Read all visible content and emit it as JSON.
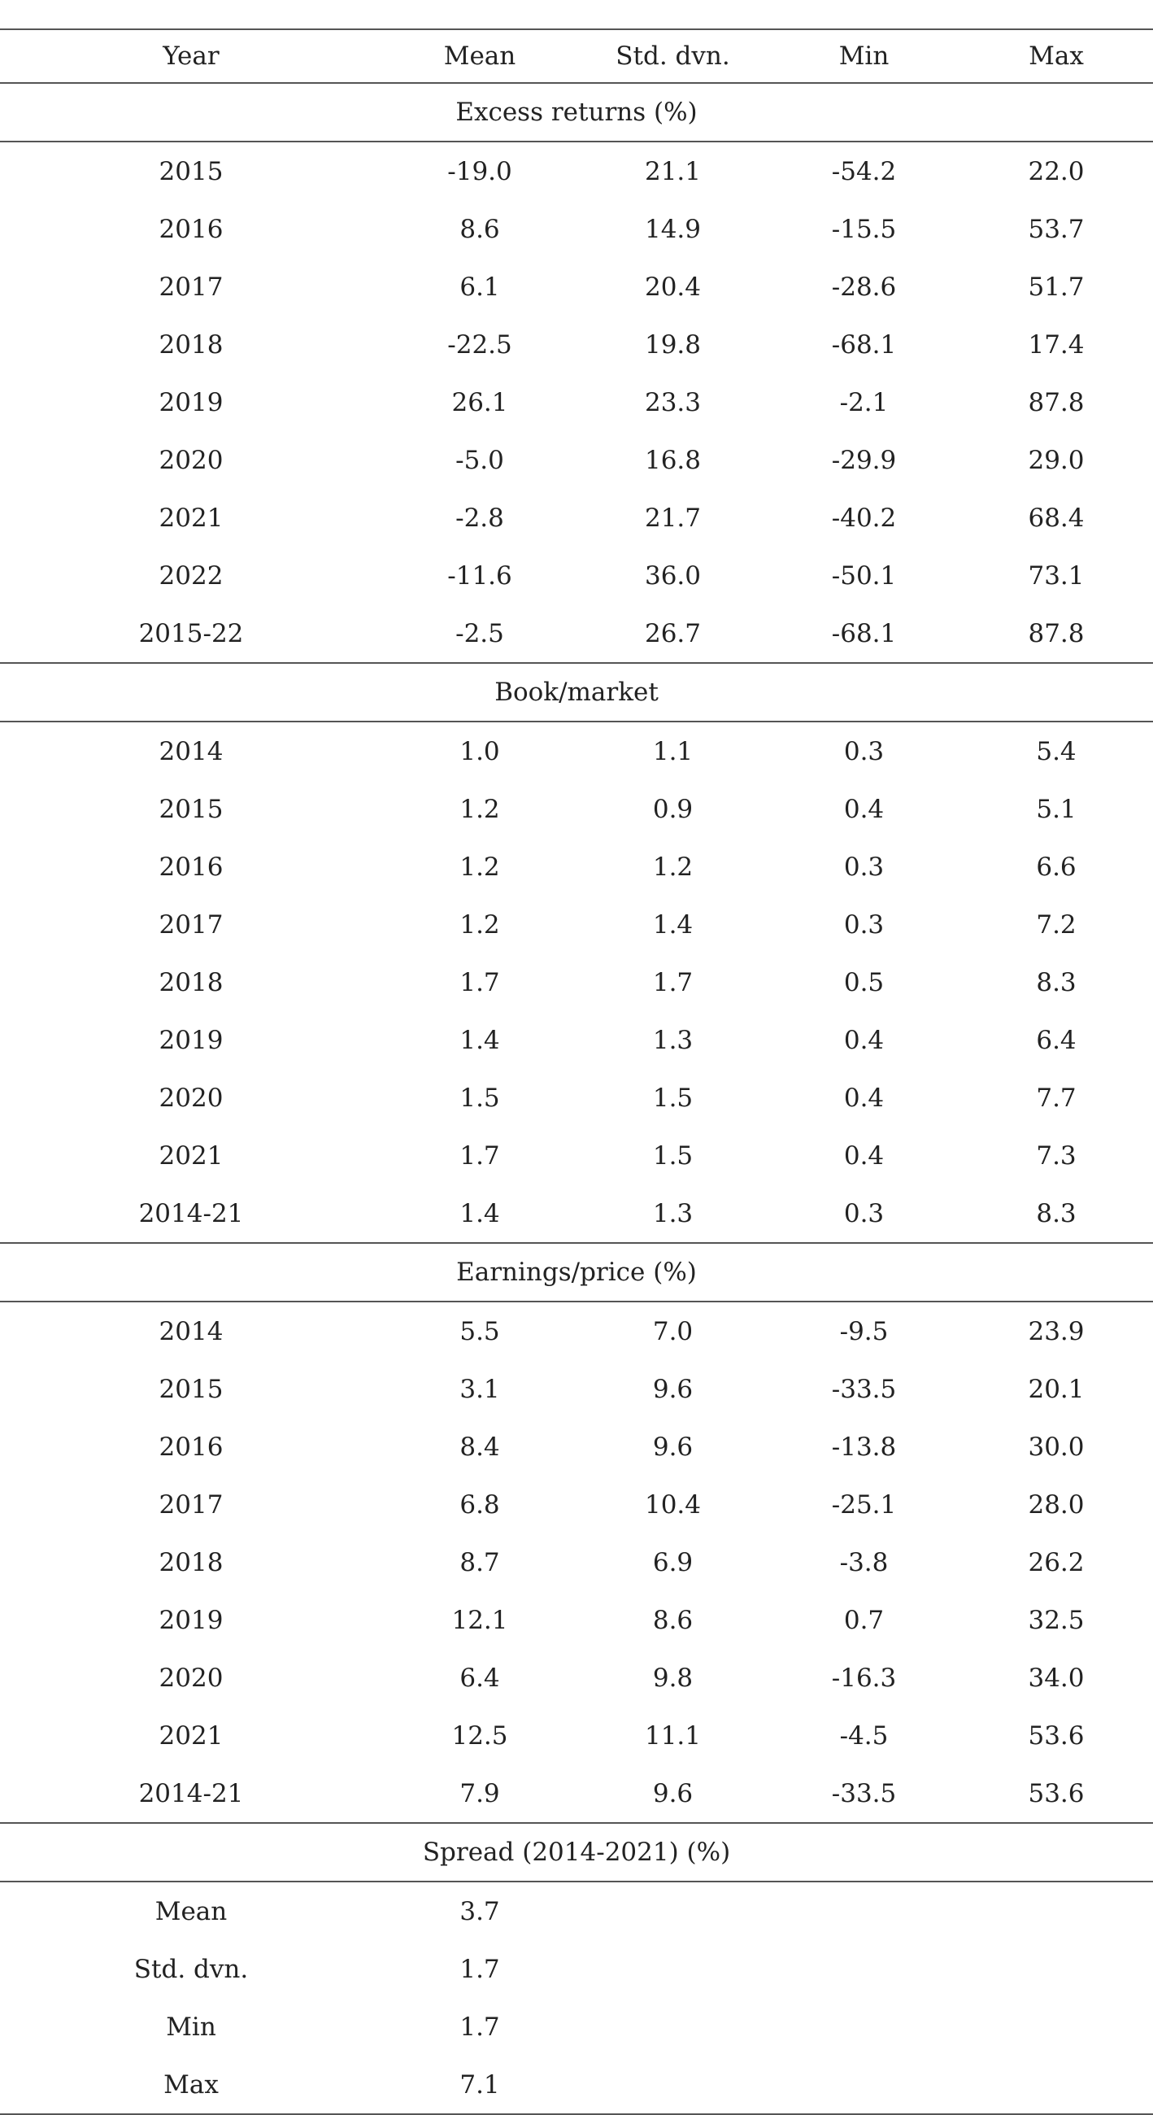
{
  "columns": [
    "Year",
    "Mean",
    "Std. dvn.",
    "Min",
    "Max"
  ],
  "sections": [
    {
      "title": "Excess returns (%)",
      "rows": [
        [
          "2015",
          "-19.0",
          "21.1",
          "-54.2",
          "22.0"
        ],
        [
          "2016",
          "8.6",
          "14.9",
          "-15.5",
          "53.7"
        ],
        [
          "2017",
          "6.1",
          "20.4",
          "-28.6",
          "51.7"
        ],
        [
          "2018",
          "-22.5",
          "19.8",
          "-68.1",
          "17.4"
        ],
        [
          "2019",
          "26.1",
          "23.3",
          "-2.1",
          "87.8"
        ],
        [
          "2020",
          "-5.0",
          "16.8",
          "-29.9",
          "29.0"
        ],
        [
          "2021",
          "-2.8",
          "21.7",
          "-40.2",
          "68.4"
        ],
        [
          "2022",
          "-11.6",
          "36.0",
          "-50.1",
          "73.1"
        ],
        [
          "2015-22",
          "-2.5",
          "26.7",
          "-68.1",
          "87.8"
        ]
      ]
    },
    {
      "title": "Book/market",
      "rows": [
        [
          "2014",
          "1.0",
          "1.1",
          "0.3",
          "5.4"
        ],
        [
          "2015",
          "1.2",
          "0.9",
          "0.4",
          "5.1"
        ],
        [
          "2016",
          "1.2",
          "1.2",
          "0.3",
          "6.6"
        ],
        [
          "2017",
          "1.2",
          "1.4",
          "0.3",
          "7.2"
        ],
        [
          "2018",
          "1.7",
          "1.7",
          "0.5",
          "8.3"
        ],
        [
          "2019",
          "1.4",
          "1.3",
          "0.4",
          "6.4"
        ],
        [
          "2020",
          "1.5",
          "1.5",
          "0.4",
          "7.7"
        ],
        [
          "2021",
          "1.7",
          "1.5",
          "0.4",
          "7.3"
        ],
        [
          "2014-21",
          "1.4",
          "1.3",
          "0.3",
          "8.3"
        ]
      ]
    },
    {
      "title": "Earnings/price (%)",
      "rows": [
        [
          "2014",
          "5.5",
          "7.0",
          "-9.5",
          "23.9"
        ],
        [
          "2015",
          "3.1",
          "9.6",
          "-33.5",
          "20.1"
        ],
        [
          "2016",
          "8.4",
          "9.6",
          "-13.8",
          "30.0"
        ],
        [
          "2017",
          "6.8",
          "10.4",
          "-25.1",
          "28.0"
        ],
        [
          "2018",
          "8.7",
          "6.9",
          "-3.8",
          "26.2"
        ],
        [
          "2019",
          "12.1",
          "8.6",
          "0.7",
          "32.5"
        ],
        [
          "2020",
          "6.4",
          "9.8",
          "-16.3",
          "34.0"
        ],
        [
          "2021",
          "12.5",
          "11.1",
          "-4.5",
          "53.6"
        ],
        [
          "2014-21",
          "7.9",
          "9.6",
          "-33.5",
          "53.6"
        ]
      ]
    },
    {
      "title": "Spread (2014-2021) (%)",
      "rows": [
        [
          "Mean",
          "3.7",
          "",
          "",
          ""
        ],
        [
          "Std. dvn.",
          "1.7",
          "",
          "",
          ""
        ],
        [
          "Min",
          "1.7",
          "",
          "",
          ""
        ],
        [
          "Max",
          "7.1",
          "",
          "",
          ""
        ]
      ]
    }
  ]
}
